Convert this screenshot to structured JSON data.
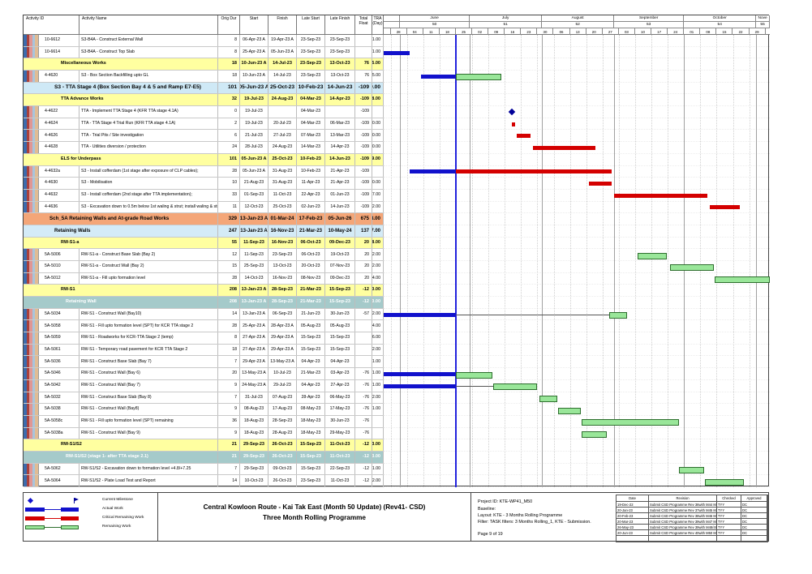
{
  "table": {
    "columns": [
      "Activity ID",
      "Activity Name",
      "Orig Dur",
      "Start",
      "Finish",
      "Late Start",
      "Late Finish",
      "Total Float",
      "TRA (Day)"
    ],
    "rows": [
      {
        "type": "task",
        "id": "10-6612",
        "name": "S3-B4A - Construct External Wall",
        "dur": "8",
        "start": "06-Apr-23 A",
        "finish": "19-Apr-23 A",
        "ls": "23-Sep-23",
        "lf": "23-Sep-23",
        "tf": "",
        "tra": "1.00"
      },
      {
        "type": "task",
        "id": "10-6614",
        "name": "S3-B4A - Construct Top Slab",
        "dur": "8",
        "start": "25-Apr-23 A",
        "finish": "05-Jun-23 A",
        "ls": "23-Sep-23",
        "lf": "23-Sep-23",
        "tf": "",
        "tra": "1.00"
      },
      {
        "type": "group",
        "style": "yellow",
        "indent": 28,
        "name": "Miscellaneous Works",
        "dur": "18",
        "start": "10-Jun-23 A",
        "finish": "14-Jul-23",
        "ls": "23-Sep-23",
        "lf": "13-Oct-23",
        "tf": "76",
        "tra": "5.00"
      },
      {
        "type": "task",
        "id": "4-4620",
        "name": "S3 - Box Section Backfilling upto GL",
        "dur": "18",
        "start": "10-Jun-23 A",
        "finish": "14-Jul-23",
        "ls": "23-Sep-23",
        "lf": "13-Oct-23",
        "tf": "76",
        "tra": "5.00"
      },
      {
        "type": "group",
        "style": "blue-lg",
        "indent": 20,
        "name": "S3 - TTA Stage 4 (Box Section Bay 4 & 5 and Ramp E7-E5)",
        "dur": "101",
        "start": "05-Jun-23 A",
        "finish": "25-Oct-23",
        "ls": "10-Feb-23",
        "lf": "14-Jun-23",
        "tf": "-109",
        "tra": "9.00"
      },
      {
        "type": "group",
        "style": "yellow",
        "indent": 28,
        "name": "TTA Advance Works",
        "dur": "32",
        "start": "19-Jul-23",
        "finish": "24-Aug-23",
        "ls": "04-Mar-23",
        "lf": "14-Apr-23",
        "tf": "-109",
        "tra": "8.00"
      },
      {
        "type": "task",
        "id": "4-4622",
        "name": "TTA - Implement TTA Stage 4 (KFR TTA stage 4.1A)",
        "dur": "0",
        "start": "19-Jul-23",
        "finish": "",
        "ls": "04-Mar-23",
        "lf": "",
        "tf": "-109",
        "tra": ""
      },
      {
        "type": "task",
        "id": "4-4624",
        "name": "TTA - TTA Stage 4 Trial Run (KFR TTA stage 4.1A)",
        "dur": "2",
        "start": "19-Jul-23",
        "finish": "20-Jul-23",
        "ls": "04-Mar-23",
        "lf": "06-Mar-23",
        "tf": "-109",
        "tra": "0.00"
      },
      {
        "type": "task",
        "id": "4-4626",
        "name": "TTA - Trial Pits / Site investigation",
        "dur": "6",
        "start": "21-Jul-23",
        "finish": "27-Jul-23",
        "ls": "07-Mar-23",
        "lf": "13-Mar-23",
        "tf": "-109",
        "tra": "0.00"
      },
      {
        "type": "task",
        "id": "4-4628",
        "name": "TTA - Utilities diversion / protection",
        "dur": "24",
        "start": "28-Jul-23",
        "finish": "24-Aug-23",
        "ls": "14-Mar-23",
        "lf": "14-Apr-23",
        "tf": "-109",
        "tra": "0.00"
      },
      {
        "type": "group",
        "style": "yellow",
        "indent": 28,
        "name": "ELS for Underpass",
        "dur": "101",
        "start": "05-Jun-23 A",
        "finish": "25-Oct-23",
        "ls": "10-Feb-23",
        "lf": "14-Jun-23",
        "tf": "-109",
        "tra": "9.00"
      },
      {
        "type": "task",
        "id": "4-4632a",
        "name": "S3 - Install cofferdam (1st stage after exposure of CLP cables);",
        "dur": "28",
        "start": "05-Jun-23 A",
        "finish": "31-Aug-23",
        "ls": "10-Feb-23",
        "lf": "21-Apr-23",
        "tf": "-109",
        "tra": ""
      },
      {
        "type": "task",
        "id": "4-4630",
        "name": "S3 - Mobilisation",
        "dur": "10",
        "start": "21-Aug-23",
        "finish": "31-Aug-23",
        "ls": "11-Apr-23",
        "lf": "21-Apr-23",
        "tf": "-109",
        "tra": "0.00"
      },
      {
        "type": "task",
        "id": "4-4632",
        "name": "S3 - Install cofferdam (2nd stage after TTA implementation);",
        "dur": "33",
        "start": "01-Sep-23",
        "finish": "11-Oct-23",
        "ls": "22-Apr-23",
        "lf": "01-Jun-23",
        "tf": "-109",
        "tra": "7.00"
      },
      {
        "type": "task",
        "id": "4-4636",
        "name": "S3 - Excavation down to 0.5m below 1st waling & strut; install waling & strut",
        "dur": "11",
        "start": "12-Oct-23",
        "finish": "25-Oct-23",
        "ls": "02-Jun-23",
        "lf": "14-Jun-23",
        "tf": "-109",
        "tra": "2.00"
      },
      {
        "type": "group",
        "style": "orange",
        "indent": 14,
        "name": "Sch_5A Retaining Walls and At-grade Road Works",
        "dur": "329",
        "start": "13-Jan-23 A",
        "finish": "01-Mar-24",
        "ls": "17-Feb-23",
        "lf": "05-Jun-26",
        "tf": "675",
        "tra": "248.00"
      },
      {
        "type": "group",
        "style": "blue",
        "indent": 20,
        "name": "Retaining Walls",
        "dur": "247",
        "start": "13-Jan-23 A",
        "finish": "16-Nov-23",
        "ls": "21-Mar-23",
        "lf": "10-May-24",
        "tf": "137",
        "tra": "127.00"
      },
      {
        "type": "group",
        "style": "yellow",
        "indent": 28,
        "name": "RW-S1-a",
        "dur": "55",
        "start": "11-Sep-23",
        "finish": "16-Nov-23",
        "ls": "06-Oct-23",
        "lf": "09-Dec-23",
        "tf": "20",
        "tra": "8.00"
      },
      {
        "type": "task",
        "id": "5A-5006",
        "name": "RW-S1-a - Construct Base Slab (Bay 2)",
        "dur": "12",
        "start": "11-Sep-23",
        "finish": "23-Sep-23",
        "ls": "06-Oct-23",
        "lf": "19-Oct-23",
        "tf": "20",
        "tra": "2.00"
      },
      {
        "type": "task",
        "id": "5A-5010",
        "name": "RW-S1-a - Construct Wall (Bay 2)",
        "dur": "15",
        "start": "25-Sep-23",
        "finish": "13-Oct-23",
        "ls": "20-Oct-23",
        "lf": "07-Nov-23",
        "tf": "20",
        "tra": "2.00"
      },
      {
        "type": "task",
        "id": "5A-5012",
        "name": "RW-S1-a - Fill upto formation level",
        "dur": "28",
        "start": "14-Oct-23",
        "finish": "16-Nov-23",
        "ls": "08-Nov-23",
        "lf": "09-Dec-23",
        "tf": "20",
        "tra": "4.00"
      },
      {
        "type": "group",
        "style": "yellow",
        "indent": 28,
        "name": "RW-S1",
        "dur": "208",
        "start": "13-Jan-23 A",
        "finish": "28-Sep-23",
        "ls": "21-Mar-23",
        "lf": "15-Sep-23",
        "tf": "-12",
        "tra": "20.00"
      },
      {
        "type": "group",
        "style": "teal",
        "indent": 34,
        "name": "Retaining Wall",
        "dur": "208",
        "start": "13-Jan-23 A",
        "finish": "28-Sep-23",
        "ls": "21-Mar-23",
        "lf": "15-Sep-23",
        "tf": "-12",
        "tra": "20.00"
      },
      {
        "type": "task",
        "id": "5A-5034",
        "name": "RW-S1 - Construct Wall (Bay10)",
        "dur": "14",
        "start": "13-Jan-23 A",
        "finish": "06-Sep-23",
        "ls": "21-Jun-23",
        "lf": "30-Jun-23",
        "tf": "-57",
        "tra": "2.00"
      },
      {
        "type": "task",
        "id": "5A-5058",
        "name": "RW-S1 - Fill upto formation level (SPT) for KCR TTA stage 2",
        "dur": "28",
        "start": "25-Apr-23 A",
        "finish": "28-Apr-23 A",
        "ls": "05-Aug-23",
        "lf": "05-Aug-23",
        "tf": "",
        "tra": "4.00"
      },
      {
        "type": "task",
        "id": "5A-5059",
        "name": "RW-S1 - Roadworks for KCR-TTA Stage 2 (temp)",
        "dur": "8",
        "start": "27-Apr-23 A",
        "finish": "29-Apr-23 A",
        "ls": "15-Sep-23",
        "lf": "15-Sep-23",
        "tf": "",
        "tra": "6.00"
      },
      {
        "type": "task",
        "id": "5A-5061",
        "name": "RW-S1 - Temporary road pavement for KCR TTA Stage 2",
        "dur": "18",
        "start": "27-Apr-23 A",
        "finish": "29-Apr-23 A",
        "ls": "15-Sep-23",
        "lf": "15-Sep-23",
        "tf": "",
        "tra": "2.00"
      },
      {
        "type": "task",
        "id": "5A-5036",
        "name": "RW-S1 - Construct Base Slab (Bay 7)",
        "dur": "7",
        "start": "29-Apr-23 A",
        "finish": "13-May-23 A",
        "ls": "04-Apr-23",
        "lf": "04-Apr-23",
        "tf": "",
        "tra": "1.00"
      },
      {
        "type": "task",
        "id": "5A-5046",
        "name": "RW-S1 - Construct Wall (Bay 6)",
        "dur": "20",
        "start": "13-May-23 A",
        "finish": "10-Jul-23",
        "ls": "21-Mar-23",
        "lf": "03-Apr-23",
        "tf": "-76",
        "tra": "1.00"
      },
      {
        "type": "task",
        "id": "5A-5042",
        "name": "RW-S1 - Construct Wall (Bay 7)",
        "dur": "9",
        "start": "24-May-23 A",
        "finish": "29-Jul-23",
        "ls": "04-Apr-23",
        "lf": "27-Apr-23",
        "tf": "-76",
        "tra": "1.00"
      },
      {
        "type": "task",
        "id": "5A-5032",
        "name": "RW-S1 - Construct Base Slab (Bay 8)",
        "dur": "7",
        "start": "31-Jul-23",
        "finish": "07-Aug-23",
        "ls": "28-Apr-23",
        "lf": "06-May-23",
        "tf": "-76",
        "tra": "2.00"
      },
      {
        "type": "task",
        "id": "5A-5038",
        "name": "RW-S1 - Construct Wall (Bay8)",
        "dur": "9",
        "start": "08-Aug-23",
        "finish": "17-Aug-23",
        "ls": "08-May-23",
        "lf": "17-May-23",
        "tf": "-76",
        "tra": "1.00"
      },
      {
        "type": "task",
        "id": "5A-5058c",
        "name": "RW-S1 - Fill upto formation level (SPT) remaining",
        "dur": "36",
        "start": "18-Aug-23",
        "finish": "28-Sep-23",
        "ls": "18-May-23",
        "lf": "30-Jun-23",
        "tf": "-76",
        "tra": ""
      },
      {
        "type": "task",
        "id": "5A-5038a",
        "name": "RW-S1 - Construct Wall (Bay 9)",
        "dur": "9",
        "start": "18-Aug-23",
        "finish": "28-Aug-23",
        "ls": "18-May-23",
        "lf": "29-May-23",
        "tf": "-76",
        "tra": ""
      },
      {
        "type": "group",
        "style": "yellow",
        "indent": 28,
        "name": "RW-S1/S2",
        "dur": "21",
        "start": "29-Sep-23",
        "finish": "26-Oct-23",
        "ls": "15-Sep-23",
        "lf": "11-Oct-23",
        "tf": "-12",
        "tra": "3.00"
      },
      {
        "type": "group",
        "style": "teal",
        "indent": 34,
        "name": "RW-S1/S2 (stage 1- after TTA stage 2.1)",
        "dur": "21",
        "start": "29-Sep-23",
        "finish": "26-Oct-23",
        "ls": "15-Sep-23",
        "lf": "11-Oct-23",
        "tf": "-12",
        "tra": "3.00"
      },
      {
        "type": "task",
        "id": "5A-5062",
        "name": "RW-S1/S2 - Excavation down to formation level +4.8/+7.25",
        "dur": "7",
        "start": "29-Sep-23",
        "finish": "09-Oct-23",
        "ls": "15-Sep-23",
        "lf": "22-Sep-23",
        "tf": "-12",
        "tra": "1.00"
      },
      {
        "type": "task",
        "id": "5A-5064",
        "name": "RW-S1/S2 - Plate Load Test and Report",
        "dur": "14",
        "start": "10-Oct-23",
        "finish": "26-Oct-23",
        "ls": "23-Sep-23",
        "lf": "11-Oct-23",
        "tf": "-12",
        "tra": "2.00"
      }
    ]
  },
  "chart_data": {
    "type": "gantt",
    "timeline": {
      "window_start": "2023-05-25",
      "window_end": "2023-11-06",
      "data_date": "2023-06-25",
      "months": [
        {
          "label": "",
          "num": "",
          "start": "2023-05-25"
        },
        {
          "label": "June",
          "num": "50",
          "start": "2023-06-01"
        },
        {
          "label": "July",
          "num": "51",
          "start": "2023-07-01"
        },
        {
          "label": "August",
          "num": "52",
          "start": "2023-08-01"
        },
        {
          "label": "September",
          "num": "53",
          "start": "2023-09-01"
        },
        {
          "label": "October",
          "num": "54",
          "start": "2023-10-01"
        },
        {
          "label": "Nove",
          "num": "55",
          "start": "2023-11-01"
        }
      ],
      "week_tick_start": "2023-05-28",
      "week_tick_labels": [
        "28",
        "04",
        "11",
        "18",
        "25",
        "02",
        "09",
        "16",
        "23",
        "30",
        "06",
        "13",
        "20",
        "27",
        "03",
        "10",
        "17",
        "24",
        "01",
        "08",
        "15",
        "22",
        "29"
      ]
    },
    "colors": {
      "actual": "#1111cc",
      "critical": "#d40000",
      "remaining": "#99e699",
      "remaining_border": "#2d6e2d",
      "milestone": "#000099",
      "connector_line": "#555555",
      "data_date_line": "#2222dd"
    },
    "bars": [
      {
        "row": 1,
        "segments": [
          [
            "actual",
            "2023-04-25",
            "2023-06-05"
          ]
        ]
      },
      {
        "row": 3,
        "segments": [
          [
            "actual",
            "2023-06-10",
            "2023-06-25"
          ],
          [
            "remaining",
            "2023-06-25",
            "2023-07-14"
          ]
        ]
      },
      {
        "row": 6,
        "segments": [
          [
            "milestone",
            "2023-07-19",
            "2023-07-19"
          ]
        ]
      },
      {
        "row": 7,
        "segments": [
          [
            "critical",
            "2023-07-19",
            "2023-07-20"
          ]
        ]
      },
      {
        "row": 8,
        "segments": [
          [
            "critical",
            "2023-07-21",
            "2023-07-27"
          ]
        ]
      },
      {
        "row": 9,
        "segments": [
          [
            "critical",
            "2023-07-28",
            "2023-08-24"
          ]
        ]
      },
      {
        "row": 11,
        "segments": [
          [
            "actual",
            "2023-06-05",
            "2023-06-25"
          ],
          [
            "critical",
            "2023-06-25",
            "2023-08-31"
          ]
        ]
      },
      {
        "row": 12,
        "segments": [
          [
            "critical",
            "2023-08-21",
            "2023-08-31"
          ]
        ]
      },
      {
        "row": 13,
        "segments": [
          [
            "critical",
            "2023-09-01",
            "2023-10-11"
          ]
        ]
      },
      {
        "row": 14,
        "segments": [
          [
            "critical",
            "2023-10-12",
            "2023-10-25"
          ]
        ]
      },
      {
        "row": 18,
        "segments": [
          [
            "remaining",
            "2023-09-11",
            "2023-09-23"
          ]
        ]
      },
      {
        "row": 19,
        "segments": [
          [
            "remaining",
            "2023-09-25",
            "2023-10-13"
          ]
        ]
      },
      {
        "row": 20,
        "segments": [
          [
            "remaining",
            "2023-10-14",
            "2023-11-16"
          ]
        ]
      },
      {
        "row": 23,
        "segments": [
          [
            "actual",
            "2023-01-13",
            "2023-06-25"
          ],
          [
            "line",
            "2023-06-25",
            "2023-08-30"
          ],
          [
            "remaining",
            "2023-08-30",
            "2023-09-06"
          ]
        ]
      },
      {
        "row": 28,
        "segments": [
          [
            "actual",
            "2023-05-13",
            "2023-06-25"
          ],
          [
            "remaining",
            "2023-06-25",
            "2023-07-10"
          ]
        ]
      },
      {
        "row": 29,
        "segments": [
          [
            "actual",
            "2023-05-24",
            "2023-06-25"
          ],
          [
            "line",
            "2023-06-25",
            "2023-07-11"
          ],
          [
            "remaining",
            "2023-07-11",
            "2023-07-29"
          ]
        ]
      },
      {
        "row": 30,
        "segments": [
          [
            "remaining",
            "2023-07-31",
            "2023-08-07"
          ]
        ]
      },
      {
        "row": 31,
        "segments": [
          [
            "remaining",
            "2023-08-08",
            "2023-08-17"
          ]
        ]
      },
      {
        "row": 32,
        "segments": [
          [
            "remaining",
            "2023-08-18",
            "2023-09-28"
          ]
        ]
      },
      {
        "row": 33,
        "segments": [
          [
            "remaining",
            "2023-08-18",
            "2023-08-28"
          ]
        ]
      },
      {
        "row": 36,
        "segments": [
          [
            "remaining",
            "2023-09-29",
            "2023-10-09"
          ]
        ]
      },
      {
        "row": 37,
        "segments": [
          [
            "remaining",
            "2023-10-10",
            "2023-10-26"
          ]
        ]
      }
    ]
  },
  "group_colors": {
    "yellow": "#ffffa0",
    "blue": "#d4ebf7",
    "blue-lg": "#cfe9f6",
    "orange": "#f4a678",
    "teal": "#a5caca"
  },
  "band_colors": [
    "#3c6cae",
    "#a8403c",
    "#e09694",
    "#a8c4dc",
    "#e0bc94"
  ],
  "legend": {
    "items": [
      {
        "type": "milestone",
        "label": "Current Milestone"
      },
      {
        "type": "actual",
        "label": "Actual Work"
      },
      {
        "type": "critical",
        "label": "Critical Remaining Work"
      },
      {
        "type": "remaining",
        "label": "Remaining Work"
      }
    ]
  },
  "title_block": {
    "line1": "Central Kowloon Route - Kai Tak East (Month 50 Update) (Rev41- CSD)",
    "line2": "Three Month Rolling Programme"
  },
  "project_info": {
    "lines": [
      "Project ID: KTE-WP41_M50",
      "Baseline:",
      "Layout: KTE - 3 Months Rolling Programme",
      "Filter: TASK filters: 3 Months Rolling_1, KTE - Submission."
    ],
    "page": "Page 9 of 19"
  },
  "revision_table": {
    "columns": [
      "Date",
      "Revision",
      "Checked",
      "Approved"
    ],
    "rows": [
      [
        "19-Dec-22",
        "Submit CSD Programme Rev 36with M44 Mon...",
        "TYY",
        "DC"
      ],
      [
        "20-Jan-23",
        "Submit CSD Programme Rev 37with M45 Mon...",
        "TYY",
        "DC"
      ],
      [
        "20-Feb-23",
        "Submit CSD Programme Rev 38with M46 Mon...",
        "TYY",
        "DC"
      ],
      [
        "20-Mar-23",
        "Submit CSD Programme Rev 39with M47 Mon...",
        "TYY",
        "DC"
      ],
      [
        "26-May-23",
        "Submit CSD Programme Rev 39with M48/49 ...",
        "TYY",
        "DC"
      ],
      [
        "20-Jun-23",
        "Submit CSD Programme Rev 40with M50 Mon...",
        "TYY",
        "DC"
      ]
    ]
  }
}
